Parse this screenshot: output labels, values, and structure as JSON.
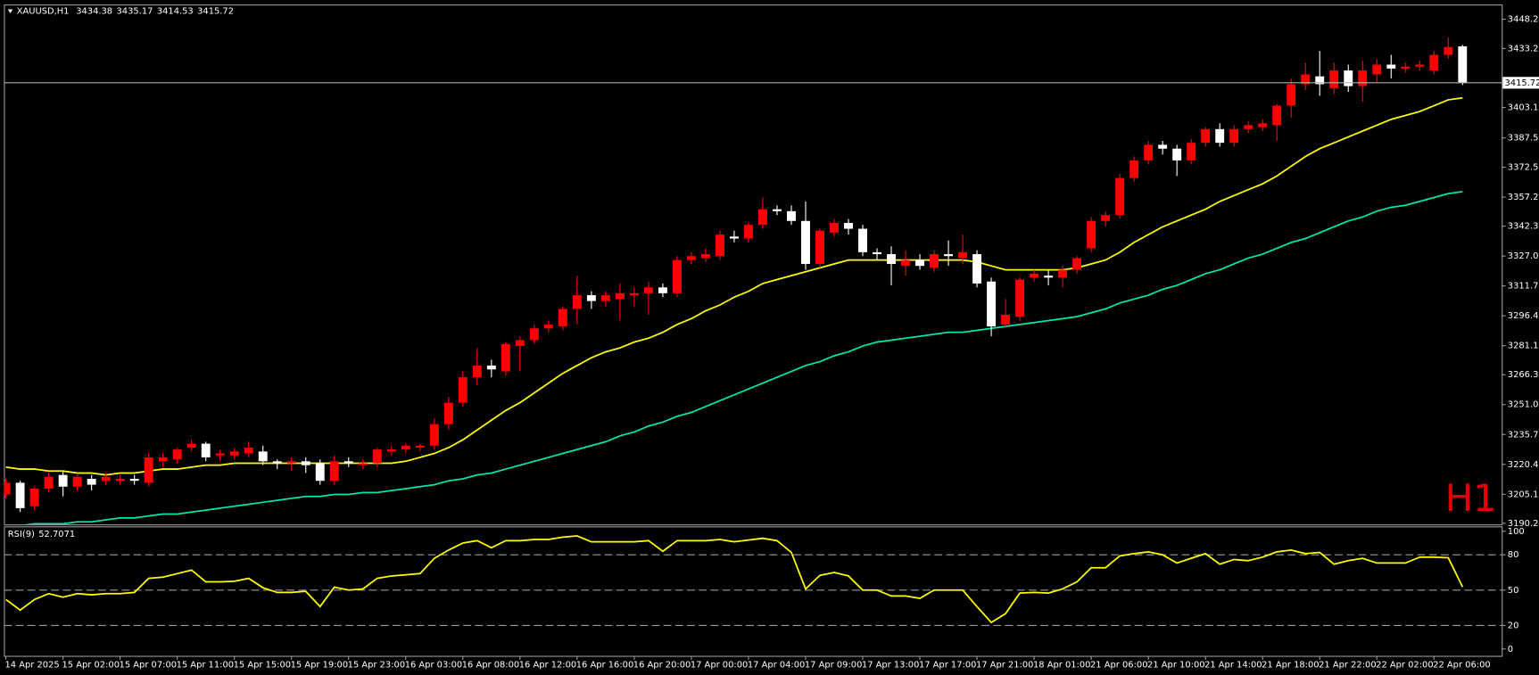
{
  "chart_data": [
    {
      "type": "candlestick",
      "title": "XAUUSD,H1",
      "watermark": "H1",
      "up_color": "#ff0000",
      "down_color": "#ffffff",
      "ylim": [
        3189.7,
        3455.3
      ],
      "yticks": [
        3190.25,
        {
          "value": 3205.1,
          "label": "3205.10"
        },
        {
          "value": 3220.4,
          "label": "3220.40"
        },
        {
          "value": 3235.7,
          "label": "3235.70"
        },
        {
          "value": 3251,
          "label": "3251.00"
        },
        {
          "value": 3266.3,
          "label": "3266.30"
        },
        3281.15,
        3296.45,
        3311.75,
        3327.05,
        3342.35,
        {
          "value": 3357.2,
          "label": "3357.20"
        },
        {
          "value": 3372.5,
          "label": "3372.50"
        },
        {
          "value": 3387.5,
          "label": "3387.50"
        },
        {
          "value": 3403.1,
          "label": "3403.10"
        },
        3433.25,
        3448.25
      ],
      "open": [
        3205,
        3211,
        3199,
        3208,
        3215,
        3209,
        3213,
        3212,
        3212,
        3213,
        3211,
        3222,
        3223,
        3229,
        3231,
        3225,
        3225,
        3226,
        3227,
        3222,
        3221,
        3222,
        3221,
        3212,
        3222,
        3220,
        3221,
        3227,
        3228,
        3229,
        3230,
        3241,
        3252,
        3265,
        3271,
        3268,
        3281,
        3284,
        3290,
        3291,
        3300,
        3307,
        3304,
        3305,
        3307,
        3308,
        3311,
        3308,
        3325,
        3326,
        3327,
        3337,
        3336,
        3343,
        3351,
        3350,
        3345,
        3323,
        3339,
        3344,
        3341,
        3329,
        3328,
        3322,
        3325,
        3321,
        3328,
        3326,
        3328,
        3314,
        3292,
        3296,
        3316,
        3317,
        3316,
        3320,
        3331,
        3345,
        3348,
        3367,
        3376,
        3384,
        3382,
        3376,
        3385,
        3392,
        3385,
        3392,
        3393,
        3394,
        3404,
        3415,
        3419,
        3413,
        3422,
        3414,
        3420,
        3425,
        3423,
        3424,
        3422,
        3430,
        3434.38
      ],
      "high": [
        3213,
        3212,
        3209,
        3216,
        3217,
        3215,
        3215,
        3216,
        3215,
        3215,
        3226,
        3226,
        3229,
        3233,
        3232,
        3228,
        3229,
        3232,
        3230,
        3223,
        3224,
        3224,
        3223,
        3225,
        3224,
        3223,
        3229,
        3230,
        3231,
        3231,
        3244,
        3255,
        3268,
        3280,
        3274,
        3283,
        3286,
        3292,
        3294,
        3301,
        3317,
        3309,
        3309,
        3313,
        3311,
        3314,
        3313,
        3327,
        3329,
        3331,
        3340,
        3340,
        3344,
        3357,
        3353,
        3353,
        3355,
        3341,
        3346,
        3346,
        3343,
        3331,
        3332,
        3330,
        3328,
        3330,
        3335,
        3338,
        3330,
        3316,
        3305,
        3316,
        3320,
        3320,
        3322,
        3327,
        3347,
        3350,
        3369,
        3378,
        3386,
        3386,
        3384,
        3387,
        3393,
        3395,
        3394,
        3396,
        3397,
        3405,
        3418,
        3426,
        3432,
        3426,
        3425,
        3427,
        3428,
        3430,
        3426,
        3427,
        3432,
        3439,
        3435.17
      ],
      "low": [
        3203,
        3196,
        3197,
        3206,
        3204,
        3207,
        3207,
        3210,
        3210,
        3210,
        3209,
        3219,
        3221,
        3227,
        3222,
        3222,
        3223,
        3224,
        3220,
        3218,
        3217,
        3216,
        3210,
        3210,
        3219,
        3218,
        3219,
        3225,
        3226,
        3227,
        3228,
        3238,
        3250,
        3261,
        3265,
        3266,
        3268,
        3282,
        3288,
        3289,
        3292,
        3300,
        3301,
        3294,
        3301,
        3297,
        3306,
        3306,
        3323,
        3324,
        3325,
        3334,
        3334,
        3341,
        3348,
        3343,
        3320,
        3321,
        3337,
        3338,
        3327,
        3325,
        3312,
        3317,
        3320,
        3319,
        3322,
        3323,
        3311,
        3286,
        3290,
        3294,
        3314,
        3312,
        3311,
        3318,
        3329,
        3342,
        3346,
        3365,
        3374,
        3379,
        3368,
        3374,
        3383,
        3383,
        3383,
        3390,
        3391,
        3386,
        3398,
        3412,
        3409,
        3410,
        3411,
        3406,
        3416,
        3418,
        3421,
        3422,
        3420,
        3428,
        3414.53
      ],
      "close": [
        3211,
        3198,
        3208,
        3214,
        3209,
        3214,
        3210,
        3214,
        3213,
        3212,
        3224,
        3224,
        3228,
        3231,
        3224,
        3226,
        3227,
        3229,
        3222,
        3221,
        3222,
        3220,
        3212,
        3222,
        3221,
        3221,
        3228,
        3228,
        3230,
        3230,
        3241,
        3252,
        3265,
        3271,
        3269,
        3282,
        3284,
        3290,
        3292,
        3300,
        3307,
        3304,
        3307,
        3308,
        3308,
        3311,
        3308,
        3325,
        3327,
        3328,
        3338,
        3336,
        3343,
        3351,
        3350,
        3345,
        3323,
        3340,
        3344,
        3341,
        3329,
        3328,
        3323,
        3325,
        3322,
        3328,
        3327,
        3329,
        3313,
        3291,
        3297,
        3315,
        3318,
        3316,
        3320,
        3326,
        3345,
        3348,
        3367,
        3376,
        3384,
        3382,
        3376,
        3385,
        3392,
        3385,
        3392,
        3394,
        3395,
        3404,
        3415,
        3420,
        3415,
        3422,
        3414,
        3422,
        3425,
        3423,
        3424,
        3425,
        3430,
        3434,
        3415.72
      ],
      "lines": [
        {
          "color": "#ffff00",
          "values": [
            3219,
            3218,
            3218,
            3217,
            3217,
            3216,
            3216,
            3215,
            3216,
            3216,
            3217,
            3218,
            3218,
            3219,
            3220,
            3220,
            3221,
            3221,
            3221,
            3221,
            3221,
            3221,
            3221,
            3221,
            3221,
            3221,
            3221,
            3221,
            3222,
            3224,
            3226,
            3229,
            3233,
            3238,
            3243,
            3248,
            3252,
            3257,
            3262,
            3267,
            3271,
            3275,
            3278,
            3280,
            3283,
            3285,
            3288,
            3292,
            3295,
            3299,
            3302,
            3306,
            3309,
            3313,
            3315,
            3317,
            3319,
            3321,
            3323,
            3325,
            3325,
            3325,
            3325,
            3325,
            3325,
            3325,
            3325,
            3325,
            3324,
            3322,
            3320,
            3320,
            3320,
            3320,
            3320,
            3321,
            3323,
            3325,
            3329,
            3334,
            3338,
            3342,
            3345,
            3348,
            3351,
            3355,
            3358,
            3361,
            3364,
            3368,
            3373,
            3378,
            3382,
            3385,
            3388,
            3391,
            3394,
            3397,
            3399,
            3401,
            3404,
            3407,
            3408
          ]
        },
        {
          "color": "#00e5b0",
          "values": [
            3189,
            3189,
            3190,
            3190,
            3190,
            3191,
            3191,
            3192,
            3193,
            3193,
            3194,
            3195,
            3195,
            3196,
            3197,
            3198,
            3199,
            3200,
            3201,
            3202,
            3203,
            3204,
            3204,
            3205,
            3205,
            3206,
            3206,
            3207,
            3208,
            3209,
            3210,
            3212,
            3213,
            3215,
            3216,
            3218,
            3220,
            3222,
            3224,
            3226,
            3228,
            3230,
            3232,
            3235,
            3237,
            3240,
            3242,
            3245,
            3247,
            3250,
            3253,
            3256,
            3259,
            3262,
            3265,
            3268,
            3271,
            3273,
            3276,
            3278,
            3281,
            3283,
            3284,
            3285,
            3286,
            3287,
            3288,
            3288,
            3289,
            3290,
            3291,
            3292,
            3293,
            3294,
            3295,
            3296,
            3298,
            3300,
            3303,
            3305,
            3307,
            3310,
            3312,
            3315,
            3318,
            3320,
            3323,
            3326,
            3328,
            3331,
            3334,
            3336,
            3339,
            3342,
            3345,
            3347,
            3350,
            3352,
            3353,
            3355,
            3357,
            3359,
            3360
          ]
        }
      ]
    },
    {
      "type": "line",
      "title": "RSI(9)",
      "color": "#ffff00",
      "ylim": [
        0,
        100
      ],
      "yticks": [
        0,
        20,
        50,
        80,
        100
      ],
      "levels": [
        20,
        50,
        80
      ],
      "categories": [
        "14 Apr 2025",
        null,
        null,
        null,
        "15 Apr 02:00",
        null,
        null,
        null,
        "15 Apr 07:00",
        null,
        null,
        null,
        "15 Apr 11:00",
        null,
        null,
        null,
        "15 Apr 15:00",
        null,
        null,
        null,
        "15 Apr 19:00",
        null,
        null,
        null,
        "15 Apr 23:00",
        null,
        null,
        null,
        "16 Apr 03:00",
        null,
        null,
        null,
        "16 Apr 08:00",
        null,
        null,
        null,
        "16 Apr 12:00",
        null,
        null,
        null,
        "16 Apr 16:00",
        null,
        null,
        null,
        "16 Apr 20:00",
        null,
        null,
        null,
        "17 Apr 00:00",
        null,
        null,
        null,
        "17 Apr 04:00",
        null,
        null,
        null,
        "17 Apr 09:00",
        null,
        null,
        null,
        "17 Apr 13:00",
        null,
        null,
        null,
        "17 Apr 17:00",
        null,
        null,
        null,
        "17 Apr 21:00",
        null,
        null,
        null,
        "18 Apr 01:00",
        null,
        null,
        null,
        "21 Apr 06:00",
        null,
        null,
        null,
        "21 Apr 10:00",
        null,
        null,
        null,
        "21 Apr 14:00",
        null,
        null,
        null,
        "21 Apr 18:00",
        null,
        null,
        null,
        "21 Apr 22:00",
        null,
        null,
        null,
        "22 Apr 02:00",
        null,
        null,
        null,
        "22 Apr 06:00",
        null,
        null
      ],
      "values": [
        42,
        33,
        42,
        47,
        44,
        47,
        46,
        47,
        47,
        48,
        60,
        61,
        64,
        67,
        57,
        57,
        57.5,
        60,
        52,
        48,
        48,
        49,
        36,
        52.5,
        50,
        51,
        60,
        62,
        63,
        64,
        77,
        84,
        90,
        92,
        86,
        92,
        92,
        93,
        93,
        95,
        96,
        91,
        91,
        91,
        91,
        92,
        83,
        92,
        92,
        92,
        93,
        91,
        92.5,
        94,
        92,
        82,
        51,
        62.5,
        65,
        62,
        50,
        50,
        45,
        45,
        43,
        50,
        50,
        50,
        36,
        22.5,
        30,
        47.5,
        48,
        47.5,
        51,
        57,
        69,
        69,
        79,
        81,
        82.5,
        80,
        73,
        77,
        81,
        72,
        76,
        75,
        78,
        82.5,
        84,
        81,
        82,
        72,
        75,
        77,
        73,
        73,
        73,
        78,
        78,
        77.5,
        52.7071
      ]
    }
  ]
}
